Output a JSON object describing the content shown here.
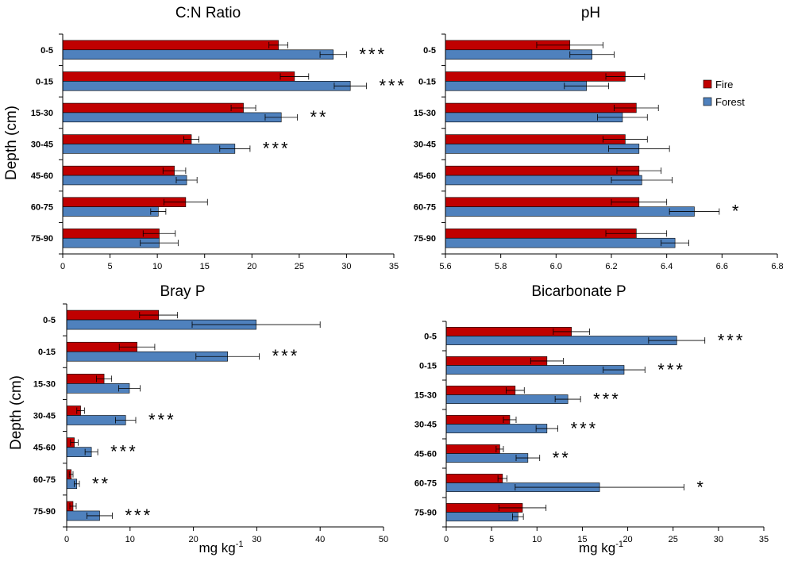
{
  "colors": {
    "fire": "#c00000",
    "forest": "#4f81bd"
  },
  "legend": {
    "fire": "Fire",
    "forest": "Forest"
  },
  "chart_data": [
    {
      "type": "bar",
      "title": "C:N Ratio",
      "ylabel": "Depth (cm)",
      "xlabel": "",
      "categories": [
        "0-5",
        "0-15",
        "15-30",
        "30-45",
        "45-60",
        "60-75",
        "75-90"
      ],
      "xlim": [
        0,
        35
      ],
      "xticks": [
        "0",
        "5",
        "10",
        "15",
        "20",
        "25",
        "30",
        "35"
      ],
      "series": [
        {
          "name": "Fire",
          "values": [
            22.8,
            24.5,
            19.1,
            13.6,
            11.8,
            13.0,
            10.2
          ],
          "err": [
            1.0,
            1.5,
            1.3,
            0.8,
            1.2,
            2.3,
            1.7
          ]
        },
        {
          "name": "Forest",
          "values": [
            28.6,
            30.4,
            23.1,
            18.2,
            13.1,
            10.1,
            10.2
          ],
          "err": [
            1.4,
            1.7,
            1.7,
            1.6,
            1.1,
            0.8,
            2.0
          ]
        }
      ],
      "significance": [
        "***",
        "***",
        "**",
        "***",
        "",
        "",
        ""
      ]
    },
    {
      "type": "bar",
      "title": "pH",
      "ylabel": "",
      "xlabel": "",
      "categories": [
        "0-5",
        "0-15",
        "15-30",
        "30-45",
        "45-60",
        "60-75",
        "75-90"
      ],
      "xlim": [
        5.6,
        6.8
      ],
      "xticks": [
        "5.6",
        "5.8",
        "6.0",
        "6.2",
        "6.4",
        "6.6",
        "6.8"
      ],
      "series": [
        {
          "name": "Fire",
          "values": [
            6.05,
            6.25,
            6.29,
            6.25,
            6.3,
            6.3,
            6.29
          ],
          "err": [
            0.12,
            0.07,
            0.08,
            0.08,
            0.08,
            0.1,
            0.11
          ]
        },
        {
          "name": "Forest",
          "values": [
            6.13,
            6.11,
            6.24,
            6.3,
            6.31,
            6.5,
            6.43
          ],
          "err": [
            0.08,
            0.08,
            0.09,
            0.11,
            0.11,
            0.09,
            0.05
          ]
        }
      ],
      "significance": [
        "",
        "",
        "",
        "",
        "",
        "*",
        ""
      ]
    },
    {
      "type": "bar",
      "title": "Bray P",
      "ylabel": "Depth (cm)",
      "xlabel": "mg kg",
      "xlabel_sup": "-1",
      "categories": [
        "0-5",
        "0-15",
        "15-30",
        "30-45",
        "45-60",
        "60-75",
        "75-90"
      ],
      "xlim": [
        0,
        50
      ],
      "xticks": [
        "0",
        "10",
        "20",
        "30",
        "40",
        "50"
      ],
      "series": [
        {
          "name": "Fire",
          "values": [
            14.5,
            11.1,
            5.9,
            2.2,
            1.2,
            0.7,
            1.0
          ],
          "err": [
            3.0,
            2.8,
            1.2,
            0.6,
            0.6,
            0.3,
            0.5
          ]
        },
        {
          "name": "Forest",
          "values": [
            29.9,
            25.4,
            9.9,
            9.3,
            3.9,
            1.6,
            5.2
          ],
          "err": [
            10.1,
            5.0,
            1.7,
            1.6,
            1.0,
            0.4,
            2.0
          ]
        }
      ],
      "significance": [
        "",
        "***",
        "",
        "***",
        "***",
        "**",
        "***"
      ]
    },
    {
      "type": "bar",
      "title": "Bicarbonate P",
      "ylabel": "",
      "xlabel": "mg kg",
      "xlabel_sup": "-1",
      "categories": [
        "0-5",
        "0-15",
        "15-30",
        "30-45",
        "45-60",
        "60-75",
        "75-90"
      ],
      "xlim": [
        0,
        35
      ],
      "xticks": [
        "0",
        "5",
        "10",
        "15",
        "20",
        "25",
        "30",
        "35"
      ],
      "series": [
        {
          "name": "Fire",
          "values": [
            13.8,
            11.1,
            7.6,
            7.0,
            5.9,
            6.2,
            8.4
          ],
          "err": [
            2.0,
            1.8,
            1.0,
            0.7,
            0.4,
            0.5,
            2.6
          ]
        },
        {
          "name": "Forest",
          "values": [
            25.4,
            19.6,
            13.4,
            11.1,
            9.0,
            16.9,
            7.9
          ],
          "err": [
            3.1,
            2.3,
            1.4,
            1.2,
            1.3,
            9.3,
            0.6
          ]
        }
      ],
      "significance": [
        "***",
        "***",
        "***",
        "***",
        "**",
        "*",
        ""
      ]
    }
  ]
}
